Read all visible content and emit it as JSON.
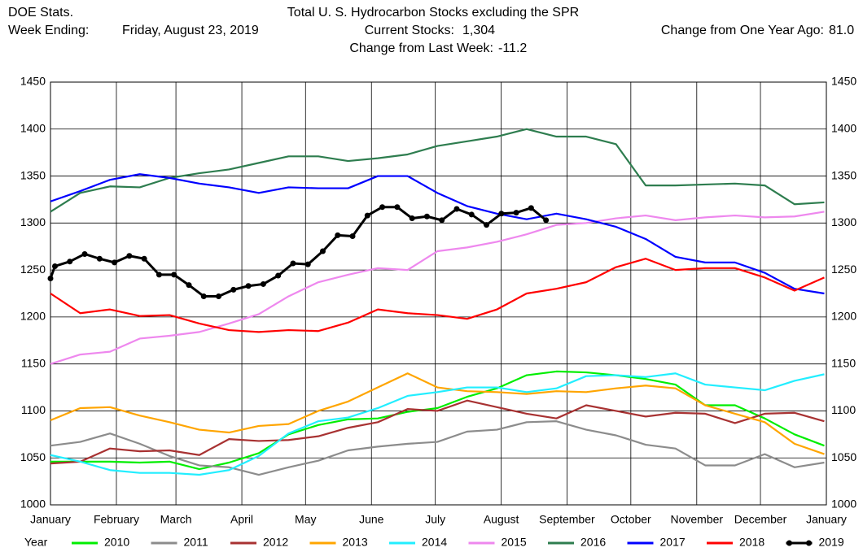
{
  "chart_data": {
    "type": "line",
    "source": "DOE Stats.",
    "week_ending_label": "Week Ending:",
    "week_ending": "Friday, August 23, 2019",
    "title": "Total U. S. Hydrocarbon Stocks excluding the SPR",
    "current_stocks_label": "Current Stocks:",
    "current_stocks": {
      "value": 1304,
      "label": "1,304"
    },
    "weekly_change_label": "Change from Last Week:",
    "weekly_change": -11.2,
    "yearly_change_label": "Change from One Year Ago:",
    "yearly_change": {
      "value": 81,
      "label": "81.0"
    },
    "legend_title": "Year",
    "grid": true,
    "ylim": [
      1000,
      1450
    ],
    "yticks": [
      1000,
      1050,
      1100,
      1150,
      1200,
      1250,
      1300,
      1350,
      1400,
      1450
    ],
    "xlim": [
      0,
      52.14
    ],
    "xticks": [
      {
        "value": 0,
        "label": "January"
      },
      {
        "value": 4.43,
        "label": "February"
      },
      {
        "value": 8.43,
        "label": "March"
      },
      {
        "value": 12.86,
        "label": "April"
      },
      {
        "value": 17.14,
        "label": "May"
      },
      {
        "value": 21.57,
        "label": "June"
      },
      {
        "value": 25.86,
        "label": "July"
      },
      {
        "value": 30.29,
        "label": "August"
      },
      {
        "value": 34.71,
        "label": "September"
      },
      {
        "value": 39,
        "label": "October"
      },
      {
        "value": 43.43,
        "label": "November"
      },
      {
        "value": 47.71,
        "label": "December"
      },
      {
        "value": 52.14,
        "label": "January"
      }
    ],
    "x": [
      0,
      2,
      4,
      6,
      8,
      10,
      12,
      14,
      16,
      18,
      20,
      22,
      24,
      26,
      28,
      30,
      32,
      34,
      36,
      38,
      40,
      42,
      44,
      46,
      48,
      50,
      52
    ],
    "series": [
      {
        "name": "2010",
        "color": "#00ee00",
        "values": [
          1046,
          1046,
          1046,
          1045,
          1046,
          1038,
          1045,
          1055,
          1075,
          1085,
          1091,
          1092,
          1099,
          1103,
          1115,
          1124,
          1138,
          1142,
          1141,
          1138,
          1134,
          1128,
          1106,
          1106,
          1092,
          1075,
          1063
        ]
      },
      {
        "name": "2011",
        "color": "#8c8c8c",
        "values": [
          1063,
          1067,
          1076,
          1065,
          1052,
          1042,
          1040,
          1032,
          1040,
          1047,
          1058,
          1062,
          1065,
          1067,
          1078,
          1080,
          1088,
          1089,
          1080,
          1074,
          1064,
          1060,
          1042,
          1042,
          1054,
          1040,
          1045
        ]
      },
      {
        "name": "2012",
        "color": "#a83232",
        "values": [
          1044,
          1046,
          1060,
          1057,
          1058,
          1053,
          1070,
          1068,
          1069,
          1073,
          1082,
          1088,
          1102,
          1100,
          1111,
          1104,
          1097,
          1092,
          1106,
          1100,
          1094,
          1098,
          1097,
          1087,
          1097,
          1098,
          1089
        ]
      },
      {
        "name": "2013",
        "color": "#ffa500",
        "values": [
          1090,
          1103,
          1104,
          1095,
          1088,
          1080,
          1077,
          1084,
          1086,
          1100,
          1110,
          1125,
          1140,
          1125,
          1121,
          1120,
          1118,
          1121,
          1120,
          1124,
          1127,
          1124,
          1106,
          1097,
          1088,
          1065,
          1054
        ]
      },
      {
        "name": "2014",
        "color": "#22eeff",
        "values": [
          1053,
          1046,
          1037,
          1034,
          1034,
          1032,
          1037,
          1052,
          1076,
          1089,
          1093,
          1103,
          1116,
          1120,
          1125,
          1125,
          1120,
          1124,
          1137,
          1138,
          1136,
          1140,
          1128,
          1125,
          1122,
          1132,
          1139
        ]
      },
      {
        "name": "2015",
        "color": "#ee88ee",
        "values": [
          1150,
          1160,
          1163,
          1177,
          1180,
          1184,
          1193,
          1203,
          1222,
          1237,
          1245,
          1252,
          1250,
          1270,
          1274,
          1280,
          1288,
          1298,
          1300,
          1305,
          1308,
          1303,
          1306,
          1308,
          1306,
          1307,
          1312
        ]
      },
      {
        "name": "2016",
        "color": "#2e7d4f",
        "values": [
          1312,
          1332,
          1339,
          1338,
          1348,
          1353,
          1357,
          1364,
          1371,
          1371,
          1366,
          1369,
          1373,
          1382,
          1387,
          1392,
          1400,
          1392,
          1392,
          1384,
          1340,
          1340,
          1341,
          1342,
          1340,
          1320,
          1322
        ]
      },
      {
        "name": "2017",
        "color": "#0000ff",
        "values": [
          1323,
          1334,
          1346,
          1352,
          1348,
          1342,
          1338,
          1332,
          1338,
          1337,
          1337,
          1350,
          1350,
          1332,
          1318,
          1310,
          1304,
          1310,
          1304,
          1296,
          1283,
          1264,
          1258,
          1258,
          1247,
          1230,
          1225
        ]
      },
      {
        "name": "2018",
        "color": "#ff0000",
        "values": [
          1225,
          1204,
          1208,
          1201,
          1202,
          1193,
          1186,
          1184,
          1186,
          1185,
          1194,
          1208,
          1204,
          1202,
          1198,
          1208,
          1225,
          1230,
          1237,
          1253,
          1262,
          1250,
          1252,
          1252,
          1242,
          1228,
          1242
        ]
      },
      {
        "name": "2019",
        "color": "#000000",
        "markers": true,
        "x": [
          0,
          0.3,
          1.3,
          2.3,
          3.3,
          4.3,
          5.3,
          6.3,
          7.3,
          8.3,
          9.3,
          10.3,
          11.3,
          12.3,
          13.3,
          14.3,
          15.3,
          16.3,
          17.3,
          18.3,
          19.3,
          20.3,
          21.3,
          22.3,
          23.3,
          24.3,
          25.3,
          26.3,
          27.3,
          28.3,
          29.3,
          30.3,
          31.3,
          32.3,
          33.3
        ],
        "values": [
          1241,
          1254,
          1259,
          1267,
          1262,
          1258,
          1265,
          1262,
          1245,
          1245,
          1234,
          1222,
          1222,
          1229,
          1233,
          1235,
          1244,
          1257,
          1256,
          1270,
          1287,
          1286,
          1308,
          1317,
          1317,
          1305,
          1307,
          1303,
          1315,
          1309,
          1298,
          1310,
          1311,
          1316,
          1303
        ]
      }
    ]
  }
}
